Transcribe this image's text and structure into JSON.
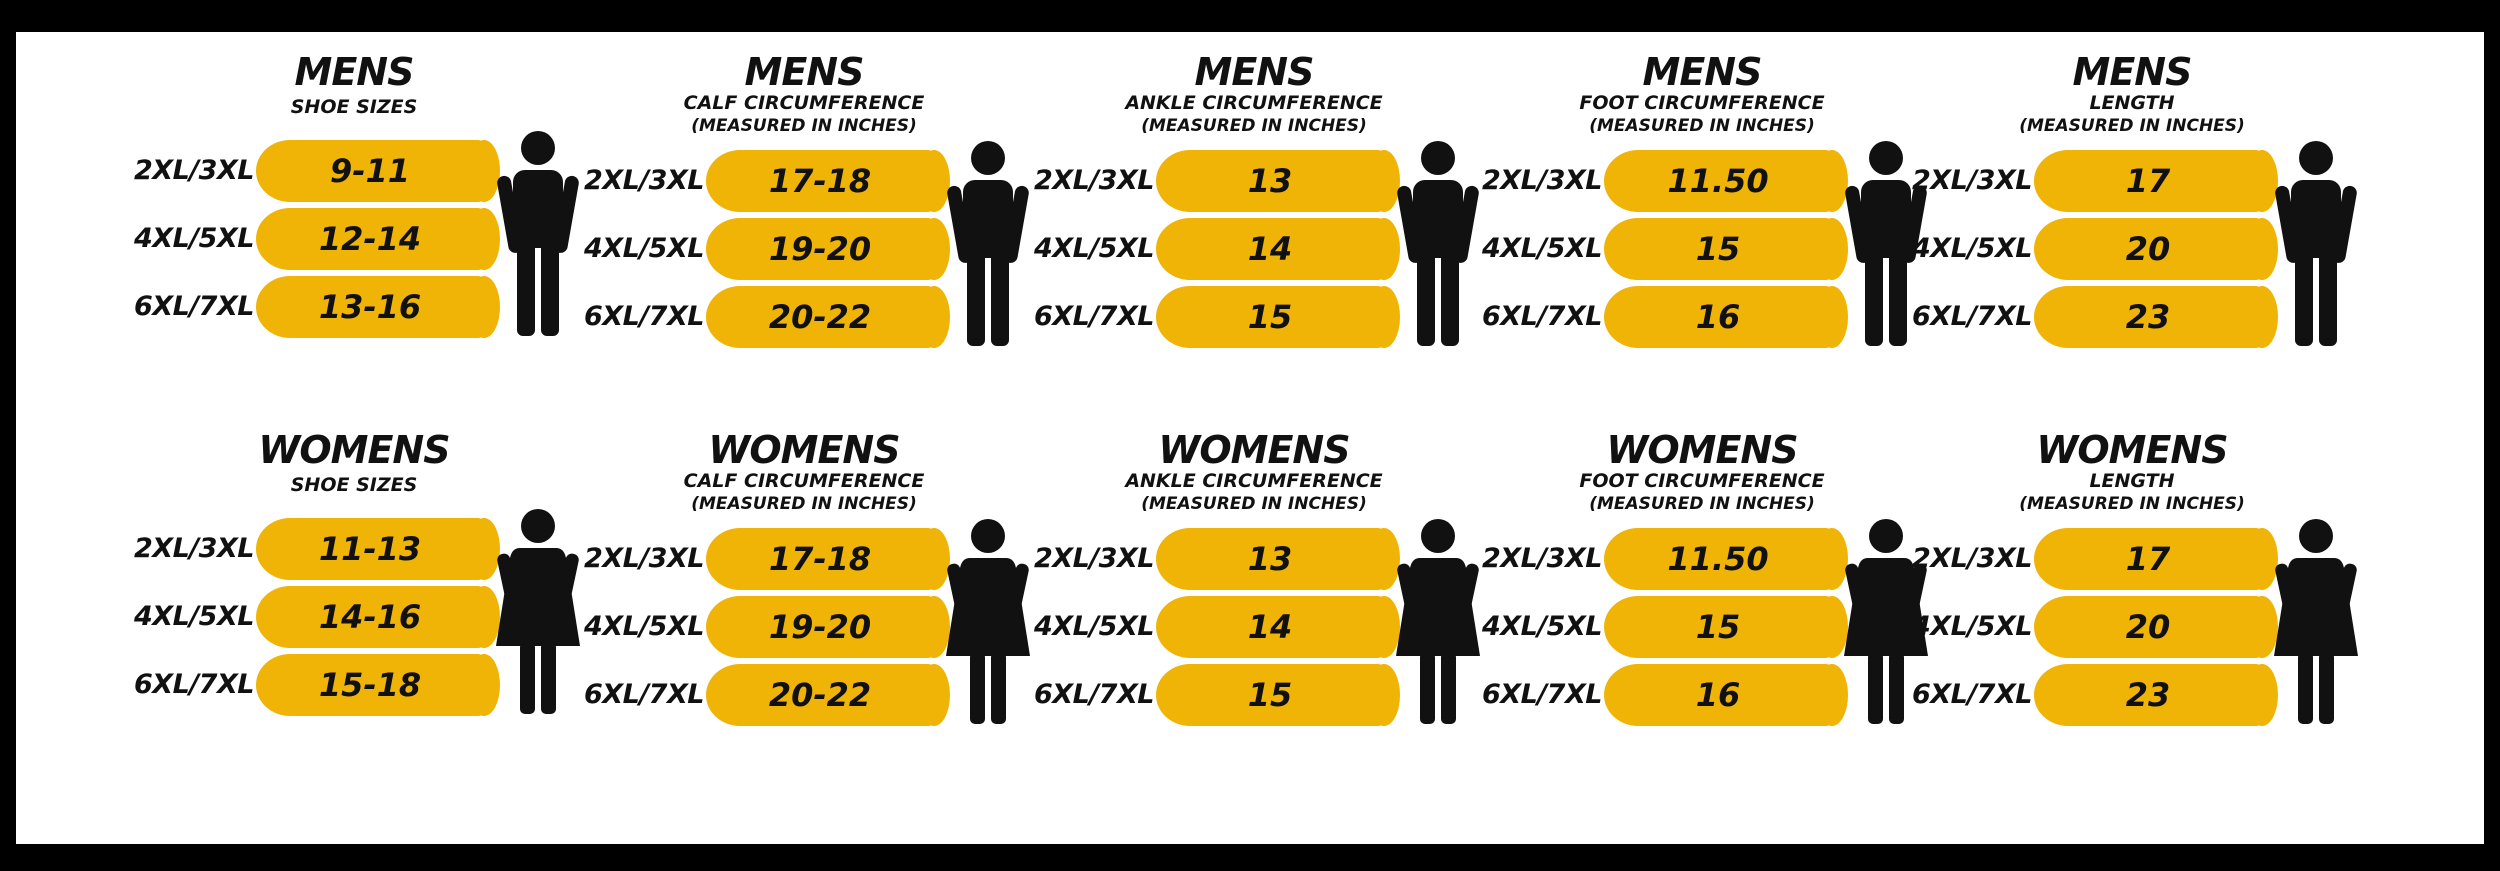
{
  "panels": [
    {
      "id": "mens-shoe",
      "gender": "male",
      "title": "MENS",
      "subtitle": "SHOE SIZES",
      "note": "",
      "rows": [
        {
          "size": "2XL/3XL",
          "value": "9-11"
        },
        {
          "size": "4XL/5XL",
          "value": "12-14"
        },
        {
          "size": "6XL/7XL",
          "value": "13-16"
        }
      ]
    },
    {
      "id": "mens-calf",
      "gender": "male",
      "title": "MENS",
      "subtitle": "CALF CIRCUMFERENCE",
      "note": "(MEASURED IN INCHES)",
      "rows": [
        {
          "size": "2XL/3XL",
          "value": "17-18"
        },
        {
          "size": "4XL/5XL",
          "value": "19-20"
        },
        {
          "size": "6XL/7XL",
          "value": "20-22"
        }
      ]
    },
    {
      "id": "mens-ankle",
      "gender": "male",
      "title": "MENS",
      "subtitle": "ANKLE CIRCUMFERENCE",
      "note": "(MEASURED IN INCHES)",
      "rows": [
        {
          "size": "2XL/3XL",
          "value": "13"
        },
        {
          "size": "4XL/5XL",
          "value": "14"
        },
        {
          "size": "6XL/7XL",
          "value": "15"
        }
      ]
    },
    {
      "id": "mens-foot",
      "gender": "male",
      "title": "MENS",
      "subtitle": "FOOT CIRCUMFERENCE",
      "note": "(MEASURED IN INCHES)",
      "rows": [
        {
          "size": "2XL/3XL",
          "value": "11.50"
        },
        {
          "size": "4XL/5XL",
          "value": "15"
        },
        {
          "size": "6XL/7XL",
          "value": "16"
        }
      ]
    },
    {
      "id": "mens-length",
      "gender": "male",
      "title": "MENS",
      "subtitle": "LENGTH",
      "note": "(MEASURED IN INCHES)",
      "rows": [
        {
          "size": "2XL/3XL",
          "value": "17"
        },
        {
          "size": "4XL/5XL",
          "value": "20"
        },
        {
          "size": "6XL/7XL",
          "value": "23"
        }
      ]
    },
    {
      "id": "womens-shoe",
      "gender": "female",
      "title": "WOMENS",
      "subtitle": "SHOE SIZES",
      "note": "",
      "rows": [
        {
          "size": "2XL/3XL",
          "value": "11-13"
        },
        {
          "size": "4XL/5XL",
          "value": "14-16"
        },
        {
          "size": "6XL/7XL",
          "value": "15-18"
        }
      ]
    },
    {
      "id": "womens-calf",
      "gender": "female",
      "title": "WOMENS",
      "subtitle": "CALF CIRCUMFERENCE",
      "note": "(MEASURED IN INCHES)",
      "rows": [
        {
          "size": "2XL/3XL",
          "value": "17-18"
        },
        {
          "size": "4XL/5XL",
          "value": "19-20"
        },
        {
          "size": "6XL/7XL",
          "value": "20-22"
        }
      ]
    },
    {
      "id": "womens-ankle",
      "gender": "female",
      "title": "WOMENS",
      "subtitle": "ANKLE CIRCUMFERENCE",
      "note": "(MEASURED IN INCHES)",
      "rows": [
        {
          "size": "2XL/3XL",
          "value": "13"
        },
        {
          "size": "4XL/5XL",
          "value": "14"
        },
        {
          "size": "6XL/7XL",
          "value": "15"
        }
      ]
    },
    {
      "id": "womens-foot",
      "gender": "female",
      "title": "WOMENS",
      "subtitle": "FOOT CIRCUMFERENCE",
      "note": "(MEASURED IN INCHES)",
      "rows": [
        {
          "size": "2XL/3XL",
          "value": "11.50"
        },
        {
          "size": "4XL/5XL",
          "value": "15"
        },
        {
          "size": "6XL/7XL",
          "value": "16"
        }
      ]
    },
    {
      "id": "womens-length",
      "gender": "female",
      "title": "WOMENS",
      "subtitle": "LENGTH",
      "note": "(MEASURED IN INCHES)",
      "rows": [
        {
          "size": "2XL/3XL",
          "value": "17"
        },
        {
          "size": "4XL/5XL",
          "value": "20"
        },
        {
          "size": "6XL/7XL",
          "value": "23"
        }
      ]
    }
  ],
  "colors": {
    "bar": "#efb405",
    "text": "#111111",
    "figure": "#111111",
    "background": "#ffffff",
    "frame": "#000000"
  },
  "icons": {
    "male": "man-figure-icon",
    "female": "woman-figure-icon"
  }
}
